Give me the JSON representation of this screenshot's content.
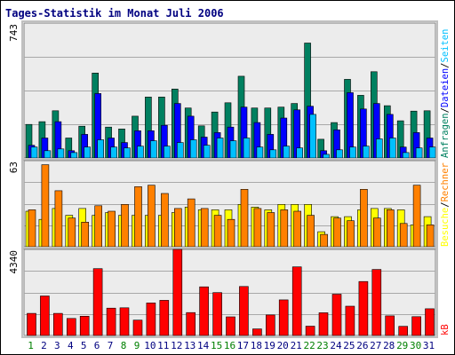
{
  "chart_data": {
    "type": "bar",
    "title": "Tages-Statistik im Monat Juli 2006",
    "categories": [
      "1",
      "2",
      "3",
      "4",
      "5",
      "6",
      "7",
      "8",
      "9",
      "10",
      "11",
      "12",
      "13",
      "14",
      "15",
      "16",
      "17",
      "18",
      "19",
      "20",
      "21",
      "22",
      "23",
      "24",
      "25",
      "26",
      "27",
      "28",
      "29",
      "30",
      "31"
    ],
    "weekend_days": [
      "1",
      "8",
      "9",
      "15",
      "16",
      "22",
      "23",
      "29",
      "30"
    ],
    "grid": true,
    "colors": {
      "background": "#ffffff",
      "panel": "#ececec",
      "frame": "#c0c0c0",
      "title": "#000080",
      "tick": "#000000",
      "weekday_tick": "#000080",
      "weekend_tick": "#008000"
    },
    "panels": [
      {
        "ymax_label": "743",
        "ylim": [
          0,
          743
        ],
        "series": [
          {
            "name": "Anfragen",
            "color": "#008060",
            "values": [
              185,
              200,
              260,
              110,
              175,
              468,
              170,
              160,
              230,
              336,
              336,
              380,
              275,
              177,
              253,
              304,
              450,
              275,
              275,
              280,
              300,
              633,
              103,
              195,
              433,
              345,
              475,
              288,
              205,
              258,
              260
            ]
          },
          {
            "name": "Dateien",
            "color": "#0000ff",
            "values": [
              70,
              110,
              200,
              40,
              130,
              355,
              110,
              85,
              150,
              150,
              180,
              300,
              230,
              115,
              140,
              170,
              280,
              195,
              130,
              220,
              265,
              285,
              40,
              155,
              360,
              270,
              300,
              240,
              60,
              140,
              110
            ]
          },
          {
            "name": "Seiten",
            "color": "#00c0ff",
            "values": [
              60,
              40,
              50,
              30,
              60,
              100,
              60,
              55,
              65,
              95,
              65,
              85,
              100,
              70,
              110,
              95,
              110,
              60,
              45,
              65,
              55,
              240,
              20,
              45,
              60,
              65,
              105,
              110,
              30,
              55,
              60
            ]
          }
        ],
        "right_labels": [
          {
            "text": "Anfragen",
            "color": "#008060"
          },
          {
            "text": "/",
            "color": "#000000"
          },
          {
            "text": "Dateien",
            "color": "#0000ff"
          },
          {
            "text": "/",
            "color": "#000000"
          },
          {
            "text": "Seiten",
            "color": "#00c0ff"
          }
        ]
      },
      {
        "ymax_label": "63",
        "ylim": [
          0,
          63
        ],
        "series": [
          {
            "name": "Besuche",
            "color": "#ffff00",
            "values": [
              26,
              20,
              28,
              23,
              28,
              23,
              25,
              23,
              23,
              23,
              23,
              25,
              29,
              27,
              27,
              27,
              31,
              29,
              27,
              31,
              31,
              31,
              11,
              22,
              22,
              27,
              28,
              28,
              27,
              16,
              22
            ]
          },
          {
            "name": "Rechner",
            "color": "#ff8000",
            "values": [
              27,
              60,
              41,
              21,
              18,
              30,
              26,
              31,
              44,
              45,
              39,
              28,
              35,
              28,
              23,
              20,
              42,
              28,
              25,
              27,
              26,
              23,
              9,
              21,
              19,
              42,
              21,
              27,
              17,
              45,
              16
            ]
          }
        ],
        "right_labels": [
          {
            "text": "Besuche",
            "color": "#ffff00"
          },
          {
            "text": "/",
            "color": "#000000"
          },
          {
            "text": "Rechner",
            "color": "#ff8000"
          }
        ]
      },
      {
        "ymax_label": "4340",
        "ylim": [
          0,
          4340
        ],
        "series": [
          {
            "name": "kB",
            "color": "#ff0000",
            "values": [
              1115,
              1990,
              1115,
              860,
              970,
              3370,
              1380,
              1395,
              775,
              1640,
              1770,
              4340,
              1155,
              2450,
              2160,
              940,
              2470,
              330,
              1035,
              1795,
              3460,
              470,
              1145,
              2080,
              1475,
              2720,
              3330,
              990,
              460,
              950,
              1345
            ]
          }
        ],
        "right_labels": [
          {
            "text": "kB",
            "color": "#ff0000"
          }
        ]
      }
    ]
  }
}
